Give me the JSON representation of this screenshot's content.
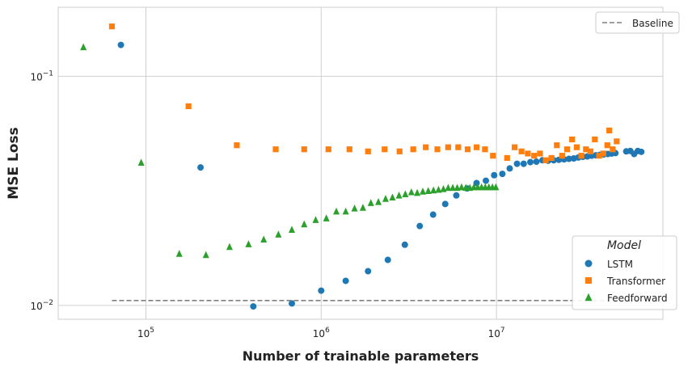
{
  "chart_data": {
    "type": "scatter",
    "xlabel": "Number of trainable parameters",
    "ylabel": "MSE Loss",
    "xscale": "log",
    "yscale": "log",
    "xlim": [
      31600,
      89000000
    ],
    "ylim": [
      0.0087,
      0.2
    ],
    "x_ticks": [
      {
        "value": 100000,
        "base": "10",
        "exp": "5"
      },
      {
        "value": 1000000,
        "base": "10",
        "exp": "6"
      },
      {
        "value": 10000000,
        "base": "10",
        "exp": "7"
      }
    ],
    "y_ticks": [
      {
        "value": 0.01,
        "base": "10",
        "exp": "−2"
      },
      {
        "value": 0.1,
        "base": "10",
        "exp": "−1"
      }
    ],
    "grid": true,
    "legend_title": "Model",
    "series": [
      {
        "name": "LSTM",
        "marker": "circle",
        "color": "#1f77b4",
        "points": [
          [
            72000,
            0.137
          ],
          [
            205000,
            0.04
          ],
          [
            410000,
            0.0099
          ],
          [
            680000,
            0.0102
          ],
          [
            1000000,
            0.0116
          ],
          [
            1380000,
            0.0128
          ],
          [
            1850000,
            0.0141
          ],
          [
            2400000,
            0.0158
          ],
          [
            3000000,
            0.0184
          ],
          [
            3650000,
            0.0222
          ],
          [
            4350000,
            0.0249
          ],
          [
            5100000,
            0.0277
          ],
          [
            5900000,
            0.0302
          ],
          [
            6800000,
            0.0324
          ],
          [
            7700000,
            0.0342
          ],
          [
            8700000,
            0.035
          ],
          [
            9700000,
            0.037
          ],
          [
            10800000,
            0.0375
          ],
          [
            11900000,
            0.0396
          ],
          [
            13100000,
            0.0415
          ],
          [
            14300000,
            0.0415
          ],
          [
            15600000,
            0.0422
          ],
          [
            16900000,
            0.0424
          ],
          [
            18300000,
            0.043
          ],
          [
            19700000,
            0.0428
          ],
          [
            21200000,
            0.043
          ],
          [
            22700000,
            0.0432
          ],
          [
            24300000,
            0.0434
          ],
          [
            25900000,
            0.0436
          ],
          [
            27600000,
            0.0438
          ],
          [
            29300000,
            0.0442
          ],
          [
            31100000,
            0.0445
          ],
          [
            33000000,
            0.0447
          ],
          [
            34900000,
            0.045
          ],
          [
            36900000,
            0.0452
          ],
          [
            38900000,
            0.0454
          ],
          [
            41000000,
            0.0456
          ],
          [
            43200000,
            0.0458
          ],
          [
            45400000,
            0.046
          ],
          [
            47700000,
            0.0462
          ],
          [
            55000000,
            0.047
          ],
          [
            58000000,
            0.0472
          ],
          [
            61000000,
            0.0458
          ],
          [
            64000000,
            0.0472
          ],
          [
            67000000,
            0.0468
          ]
        ]
      },
      {
        "name": "Transformer",
        "marker": "square",
        "color": "#ff7f0e",
        "points": [
          [
            64000,
            0.165
          ],
          [
            175000,
            0.074
          ],
          [
            330000,
            0.05
          ],
          [
            550000,
            0.048
          ],
          [
            800000,
            0.048
          ],
          [
            1100000,
            0.048
          ],
          [
            1450000,
            0.048
          ],
          [
            1850000,
            0.047
          ],
          [
            2300000,
            0.048
          ],
          [
            2800000,
            0.047
          ],
          [
            3350000,
            0.048
          ],
          [
            3950000,
            0.049
          ],
          [
            4600000,
            0.048
          ],
          [
            5300000,
            0.049
          ],
          [
            6050000,
            0.049
          ],
          [
            6850000,
            0.048
          ],
          [
            7700000,
            0.049
          ],
          [
            8600000,
            0.048
          ],
          [
            9550000,
            0.045
          ],
          [
            11500000,
            0.044
          ],
          [
            12700000,
            0.049
          ],
          [
            13900000,
            0.047
          ],
          [
            15100000,
            0.046
          ],
          [
            16400000,
            0.045
          ],
          [
            17700000,
            0.046
          ],
          [
            19100000,
            0.043
          ],
          [
            20600000,
            0.044
          ],
          [
            22100000,
            0.05
          ],
          [
            23700000,
            0.045
          ],
          [
            25300000,
            0.048
          ],
          [
            27000000,
            0.053
          ],
          [
            28700000,
            0.049
          ],
          [
            30500000,
            0.045
          ],
          [
            32400000,
            0.048
          ],
          [
            34400000,
            0.047
          ],
          [
            36400000,
            0.053
          ],
          [
            38500000,
            0.045
          ],
          [
            40700000,
            0.046
          ],
          [
            42900000,
            0.05
          ],
          [
            44000000,
            0.058
          ],
          [
            46000000,
            0.048
          ],
          [
            48500000,
            0.052
          ]
        ]
      },
      {
        "name": "Feedforward",
        "marker": "triangle",
        "color": "#2ca02c",
        "points": [
          [
            44000,
            0.134
          ],
          [
            94000,
            0.042
          ],
          [
            155000,
            0.0168
          ],
          [
            220000,
            0.0166
          ],
          [
            300000,
            0.018
          ],
          [
            385000,
            0.0185
          ],
          [
            470000,
            0.0194
          ],
          [
            570000,
            0.0204
          ],
          [
            680000,
            0.0214
          ],
          [
            800000,
            0.0226
          ],
          [
            930000,
            0.0236
          ],
          [
            1070000,
            0.024
          ],
          [
            1220000,
            0.0257
          ],
          [
            1380000,
            0.0257
          ],
          [
            1550000,
            0.0265
          ],
          [
            1730000,
            0.0267
          ],
          [
            1920000,
            0.028
          ],
          [
            2120000,
            0.0283
          ],
          [
            2330000,
            0.0292
          ],
          [
            2550000,
            0.0296
          ],
          [
            2780000,
            0.0302
          ],
          [
            3020000,
            0.0306
          ],
          [
            3270000,
            0.0312
          ],
          [
            3530000,
            0.031
          ],
          [
            3800000,
            0.0314
          ],
          [
            4080000,
            0.0316
          ],
          [
            4370000,
            0.0318
          ],
          [
            4670000,
            0.032
          ],
          [
            4980000,
            0.0322
          ],
          [
            5300000,
            0.0326
          ],
          [
            5630000,
            0.0326
          ],
          [
            5970000,
            0.0326
          ],
          [
            6320000,
            0.0328
          ],
          [
            6680000,
            0.0326
          ],
          [
            7050000,
            0.0326
          ],
          [
            7430000,
            0.0328
          ],
          [
            7820000,
            0.0328
          ],
          [
            8220000,
            0.0328
          ],
          [
            8630000,
            0.0328
          ],
          [
            9050000,
            0.0328
          ],
          [
            9480000,
            0.0328
          ],
          [
            9920000,
            0.0328
          ]
        ]
      }
    ],
    "reference_lines": [
      {
        "name": "Baseline",
        "y": 0.0105,
        "x_start": 64000,
        "x_end": 68000000,
        "color": "#808080",
        "style": "dashed"
      }
    ]
  }
}
